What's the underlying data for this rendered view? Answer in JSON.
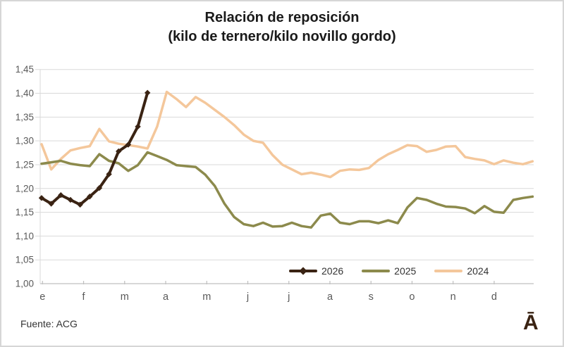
{
  "figure": {
    "title_line1": "Relación de reposición",
    "title_line2": "(kilo de ternero/kilo novillo gordo)",
    "source": "Fuente: ACG",
    "logo": "Ā"
  },
  "chart_data": {
    "type": "line",
    "title": "Relación de reposición (kilo de ternero/kilo novillo gordo)",
    "xlabel": "",
    "ylabel": "",
    "x_tick_labels": [
      "e",
      "f",
      "m",
      "a",
      "m",
      "j",
      "j",
      "a",
      "s",
      "o",
      "n",
      "d"
    ],
    "x_note": "weekly observations across 12 months",
    "ylim": [
      1.0,
      1.45
    ],
    "y_step": 0.05,
    "y_tick_labels": [
      "1,00",
      "1,05",
      "1,10",
      "1,15",
      "1,20",
      "1,25",
      "1,30",
      "1,35",
      "1,40",
      "1,45"
    ],
    "grid": true,
    "legend_position": "inside-bottom-right",
    "series": [
      {
        "name": "2026",
        "color": "#3a2313",
        "marker": "diamond",
        "line_width": 4,
        "values": [
          1.18,
          1.168,
          1.186,
          1.176,
          1.166,
          1.183,
          1.201,
          1.23,
          1.278,
          1.292,
          1.33,
          1.401
        ]
      },
      {
        "name": "2025",
        "color": "#8c8a4c",
        "marker": "none",
        "line_width": 3.5,
        "values": [
          1.252,
          1.255,
          1.258,
          1.252,
          1.249,
          1.247,
          1.272,
          1.258,
          1.253,
          1.237,
          1.249,
          1.276,
          1.268,
          1.26,
          1.249,
          1.247,
          1.245,
          1.229,
          1.205,
          1.168,
          1.14,
          1.125,
          1.121,
          1.128,
          1.12,
          1.121,
          1.128,
          1.121,
          1.118,
          1.143,
          1.147,
          1.128,
          1.125,
          1.131,
          1.131,
          1.127,
          1.133,
          1.127,
          1.16,
          1.18,
          1.176,
          1.168,
          1.162,
          1.161,
          1.158,
          1.148,
          1.163,
          1.151,
          1.149,
          1.176,
          1.18,
          1.183
        ]
      },
      {
        "name": "2024",
        "color": "#f4c79b",
        "marker": "none",
        "line_width": 3.5,
        "values": [
          1.293,
          1.24,
          1.262,
          1.28,
          1.285,
          1.289,
          1.325,
          1.299,
          1.294,
          1.291,
          1.288,
          1.284,
          1.33,
          1.403,
          1.388,
          1.371,
          1.392,
          1.38,
          1.365,
          1.35,
          1.333,
          1.313,
          1.3,
          1.296,
          1.27,
          1.25,
          1.24,
          1.23,
          1.233,
          1.229,
          1.224,
          1.237,
          1.24,
          1.239,
          1.243,
          1.26,
          1.272,
          1.281,
          1.291,
          1.289,
          1.277,
          1.281,
          1.288,
          1.289,
          1.266,
          1.262,
          1.259,
          1.251,
          1.259,
          1.254,
          1.251,
          1.257
        ]
      }
    ],
    "style": {
      "gridline_color": "#d9d9d9",
      "axis_color": "#bfbfbf",
      "tick_label_color": "#595959",
      "background": "#ffffff"
    }
  }
}
